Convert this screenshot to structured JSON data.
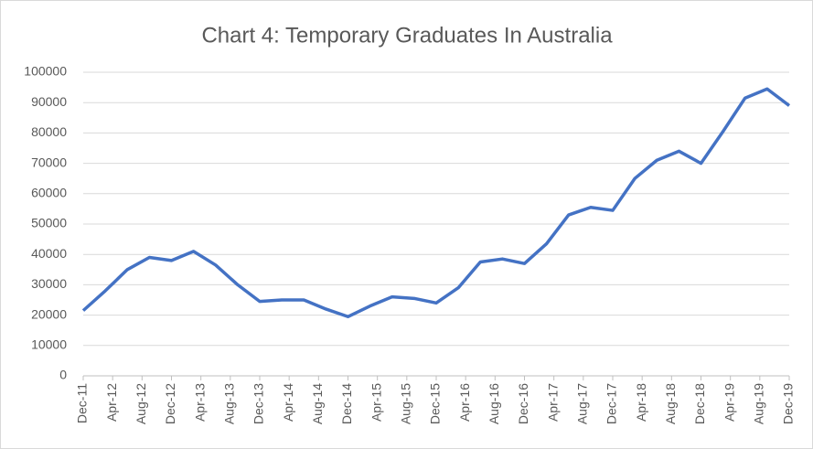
{
  "chart_data": {
    "type": "line",
    "title": "Chart 4: Temporary Graduates In Australia",
    "x": [
      "Dec-11",
      "Mar-12",
      "Jun-12",
      "Sep-12",
      "Dec-12",
      "Mar-13",
      "Jun-13",
      "Sep-13",
      "Dec-13",
      "Mar-14",
      "Jun-14",
      "Sep-14",
      "Dec-14",
      "Mar-15",
      "Jun-15",
      "Sep-15",
      "Dec-15",
      "Mar-16",
      "Jun-16",
      "Sep-16",
      "Dec-16",
      "Mar-17",
      "Jun-17",
      "Sep-17",
      "Dec-17",
      "Mar-18",
      "Jun-18",
      "Sep-18",
      "Dec-18",
      "Mar-19",
      "Jun-19",
      "Sep-19",
      "Dec-19"
    ],
    "values": [
      21500,
      28000,
      35000,
      39000,
      38000,
      41000,
      36500,
      30000,
      24500,
      25000,
      25000,
      22000,
      19500,
      23000,
      26000,
      25500,
      24000,
      29000,
      37500,
      38500,
      37000,
      43500,
      53000,
      55500,
      54500,
      65000,
      71000,
      74000,
      70000,
      80500,
      91500,
      94500,
      89000
    ],
    "color": "#4472c4",
    "xlim": [
      "Dec-11",
      "Dec-19"
    ],
    "xticks": [
      "Dec-11",
      "Apr-12",
      "Aug-12",
      "Dec-12",
      "Apr-13",
      "Aug-13",
      "Dec-13",
      "Apr-14",
      "Aug-14",
      "Dec-14",
      "Apr-15",
      "Aug-15",
      "Dec-15",
      "Apr-16",
      "Aug-16",
      "Dec-16",
      "Apr-17",
      "Aug-17",
      "Dec-17",
      "Apr-18",
      "Aug-18",
      "Dec-18",
      "Apr-19",
      "Aug-19",
      "Dec-19"
    ],
    "ylim": [
      0,
      100000
    ],
    "yticks": [
      0,
      10000,
      20000,
      30000,
      40000,
      50000,
      60000,
      70000,
      80000,
      90000,
      100000
    ],
    "grid": true
  }
}
